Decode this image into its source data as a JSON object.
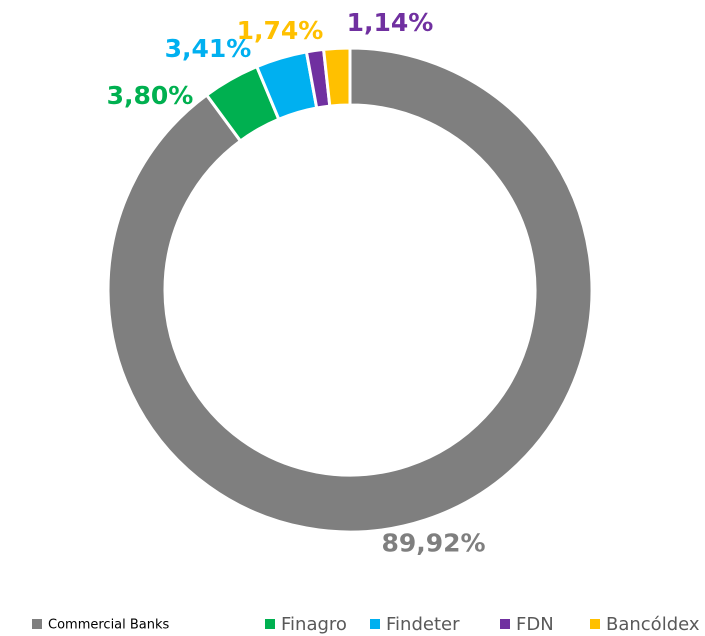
{
  "chart_data": {
    "type": "donut",
    "categories": [
      "Commercial Banks",
      "Finagro",
      "Findeter",
      "FDN",
      "Bancóldex"
    ],
    "values": [
      89.92,
      3.8,
      3.41,
      1.14,
      1.74
    ],
    "value_labels": [
      "89,92%",
      "3,80%",
      "3,41%",
      "1,14%",
      "1,74%"
    ],
    "colors": [
      "#7f7f7f",
      "#00b050",
      "#00b0f0",
      "#7030a0",
      "#ffc000"
    ],
    "legend": "bottom"
  }
}
